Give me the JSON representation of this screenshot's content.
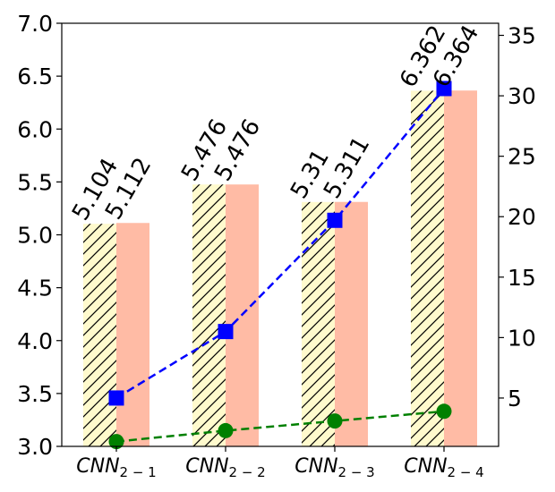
{
  "chart_data": {
    "type": "bar",
    "categories": [
      {
        "main": "CNN",
        "sub": "2 − 1"
      },
      {
        "main": "CNN",
        "sub": "2 − 2"
      },
      {
        "main": "CNN",
        "sub": "2 − 3"
      },
      {
        "main": "CNN",
        "sub": "2 − 4"
      }
    ],
    "title": "",
    "xlabel": "",
    "ylabel": "",
    "ylim": [
      3.0,
      7.0
    ],
    "y_ticks": [
      "3.0",
      "3.5",
      "4.0",
      "4.5",
      "5.0",
      "5.5",
      "6.0",
      "6.5",
      "7.0"
    ],
    "y2lim": [
      1.0,
      36.0
    ],
    "y2_ticks": [
      "5",
      "10",
      "15",
      "20",
      "25",
      "30",
      "35"
    ],
    "grid": false,
    "series": [
      {
        "kind": "bar",
        "axis": "left",
        "values": [
          5.104,
          5.476,
          5.31,
          6.362
        ],
        "labels": [
          "5.104",
          "5.476",
          "5.31",
          "6.362"
        ],
        "color": "#fffacd",
        "hatch": true
      },
      {
        "kind": "bar",
        "axis": "left",
        "values": [
          5.112,
          5.476,
          5.311,
          6.364
        ],
        "labels": [
          "5.112",
          "5.476",
          "5.311",
          "6.364"
        ],
        "color": "#ffbba5",
        "hatch": false
      },
      {
        "kind": "line",
        "axis": "right",
        "values": [
          5.0,
          10.5,
          19.7,
          30.6
        ],
        "marker": "square",
        "color": "#0000ff",
        "linestyle": "dashed"
      },
      {
        "kind": "line",
        "axis": "right",
        "values": [
          1.4,
          2.3,
          3.1,
          3.9
        ],
        "marker": "circle",
        "color": "#008000",
        "linestyle": "dashed"
      }
    ]
  }
}
